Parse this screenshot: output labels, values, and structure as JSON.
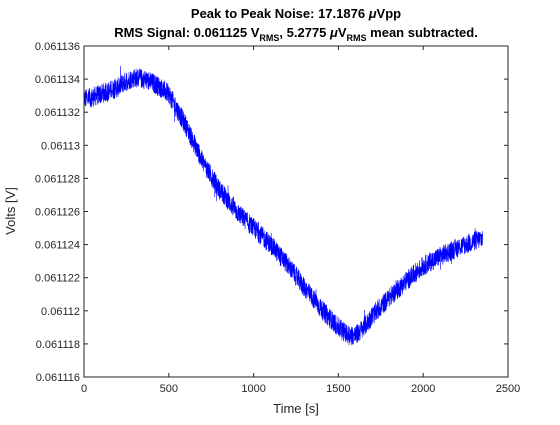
{
  "chart_data": {
    "type": "line",
    "title_line1": {
      "parts": [
        "Peak to Peak Noise: 17.1876 ",
        "μ",
        "Vpp"
      ]
    },
    "title_line2": {
      "parts": [
        "RMS Signal: 0.061125 V",
        "RMS",
        ", 5.2775 ",
        "μ",
        "V",
        "RMS",
        " mean subtracted."
      ]
    },
    "title_text": "Peak to Peak Noise: 17.1876 μVpp / RMS Signal: 0.061125 VRMS, 5.2775 μVRMS mean subtracted.",
    "xlabel": "Time [s]",
    "ylabel": "Volts [V]",
    "xlim": [
      0,
      2500
    ],
    "ylim": [
      0.061116,
      0.061136
    ],
    "xticks": [
      0,
      500,
      1000,
      1500,
      2000,
      2500
    ],
    "xtick_labels": [
      "0",
      "500",
      "1000",
      "1500",
      "2000",
      "2500"
    ],
    "yticks": [
      0.061116,
      0.061118,
      0.06112,
      0.061122,
      0.061124,
      0.061126,
      0.061128,
      0.06113,
      0.061132,
      0.061134,
      0.061136
    ],
    "ytick_labels": [
      "0.061116",
      "0.061118",
      "0.06112",
      "0.061122",
      "0.061124",
      "0.061126",
      "0.061128",
      "0.06113",
      "0.061132",
      "0.061134",
      "0.061136"
    ],
    "grid": false,
    "line_color": "#0000ff",
    "noise_band": 1.2e-06,
    "series": [
      {
        "x": [
          0,
          50,
          100,
          150,
          200,
          250,
          300,
          350,
          400,
          450,
          500,
          600,
          700,
          800,
          900,
          1000,
          1100,
          1200,
          1300,
          1400,
          1500,
          1550,
          1600,
          1650,
          1700,
          1800,
          1900,
          2000,
          2100,
          2200,
          2300,
          2350
        ],
        "values": [
          0.0611328,
          0.0611329,
          0.0611331,
          0.0611333,
          0.0611335,
          0.0611339,
          0.0611341,
          0.061134,
          0.0611338,
          0.0611335,
          0.0611331,
          0.0611312,
          0.061129,
          0.0611273,
          0.061126,
          0.061125,
          0.061124,
          0.0611228,
          0.0611214,
          0.0611201,
          0.061119,
          0.0611186,
          0.0611185,
          0.061119,
          0.0611197,
          0.0611208,
          0.0611218,
          0.0611227,
          0.0611233,
          0.0611238,
          0.0611242,
          0.0611244
        ]
      }
    ]
  }
}
